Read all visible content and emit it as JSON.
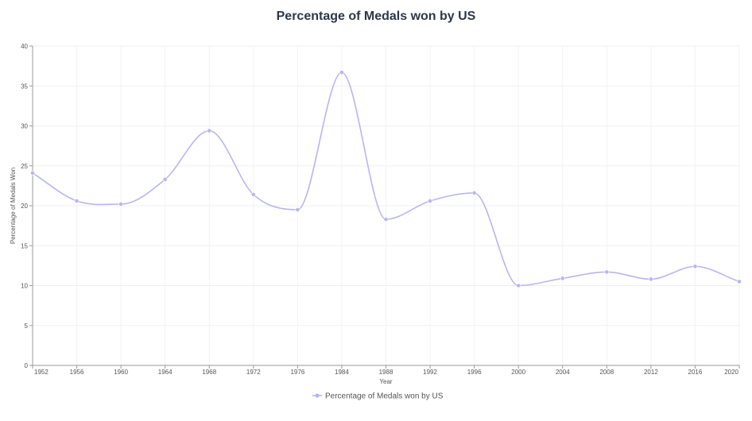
{
  "chart_data": {
    "type": "line",
    "title": "Percentage of Medals won by US",
    "xlabel": "Year",
    "ylabel": "Percentage of Medals Won",
    "x": [
      "1952",
      "1956",
      "1960",
      "1964",
      "1968",
      "1972",
      "1976",
      "1984",
      "1988",
      "1992",
      "1996",
      "2000",
      "2004",
      "2008",
      "2012",
      "2016",
      "2020"
    ],
    "series": [
      {
        "name": "Percentage of Medals won by US",
        "color": "#b8b5f2",
        "values": [
          24.1,
          20.6,
          20.2,
          23.3,
          29.4,
          21.4,
          19.5,
          36.7,
          18.3,
          20.6,
          21.6,
          10.0,
          10.9,
          11.7,
          10.8,
          12.4,
          10.5
        ]
      }
    ],
    "ylim": [
      0,
      40
    ],
    "yticks": [
      0,
      5,
      10,
      15,
      20,
      25,
      30,
      35,
      40
    ],
    "grid": true,
    "legend_position": "bottom-center"
  }
}
